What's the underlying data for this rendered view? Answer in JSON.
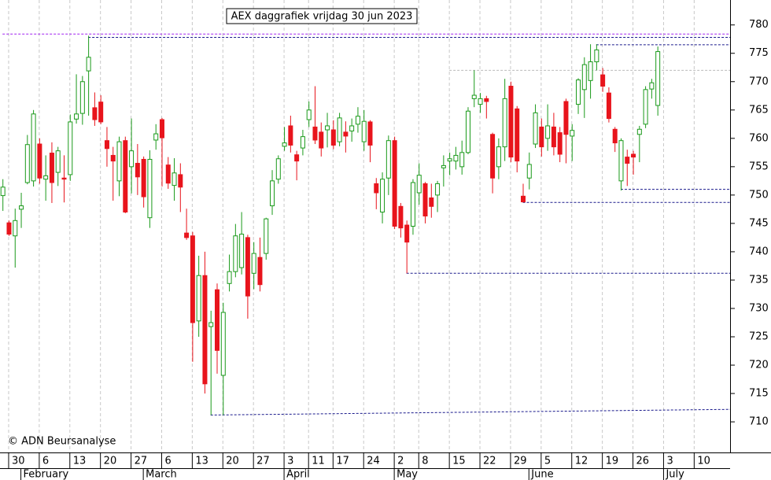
{
  "chart_data": {
    "type": "candlestick",
    "title": "AEX daggrafiek vrijdag 30 jun 2023",
    "source": "© ADN Beursanalyse",
    "x": [
      "2023-01-27",
      "2023-01-30",
      "2023-01-31",
      "2023-02-01",
      "2023-02-02",
      "2023-02-03",
      "2023-02-06",
      "2023-02-07",
      "2023-02-08",
      "2023-02-09",
      "2023-02-10",
      "2023-02-13",
      "2023-02-14",
      "2023-02-15",
      "2023-02-16",
      "2023-02-17",
      "2023-02-20",
      "2023-02-21",
      "2023-02-22",
      "2023-02-23",
      "2023-02-24",
      "2023-02-27",
      "2023-02-28",
      "2023-03-01",
      "2023-03-02",
      "2023-03-03",
      "2023-03-06",
      "2023-03-07",
      "2023-03-08",
      "2023-03-09",
      "2023-03-10",
      "2023-03-13",
      "2023-03-14",
      "2023-03-15",
      "2023-03-16",
      "2023-03-17",
      "2023-03-20",
      "2023-03-21",
      "2023-03-22",
      "2023-03-23",
      "2023-03-24",
      "2023-03-27",
      "2023-03-28",
      "2023-03-29",
      "2023-03-30",
      "2023-03-31",
      "2023-04-03",
      "2023-04-04",
      "2023-04-05",
      "2023-04-06",
      "2023-04-11",
      "2023-04-12",
      "2023-04-13",
      "2023-04-14",
      "2023-04-17",
      "2023-04-18",
      "2023-04-19",
      "2023-04-20",
      "2023-04-21",
      "2023-04-24",
      "2023-04-25",
      "2023-04-26",
      "2023-04-27",
      "2023-04-28",
      "2023-05-02",
      "2023-05-03",
      "2023-05-04",
      "2023-05-05",
      "2023-05-08",
      "2023-05-09",
      "2023-05-10",
      "2023-05-11",
      "2023-05-12",
      "2023-05-15",
      "2023-05-16",
      "2023-05-17",
      "2023-05-18",
      "2023-05-19",
      "2023-05-22",
      "2023-05-23",
      "2023-05-24",
      "2023-05-25",
      "2023-05-26",
      "2023-05-29",
      "2023-05-30",
      "2023-05-31",
      "2023-06-01",
      "2023-06-02",
      "2023-06-05",
      "2023-06-06",
      "2023-06-07",
      "2023-06-08",
      "2023-06-09",
      "2023-06-12",
      "2023-06-13",
      "2023-06-14",
      "2023-06-15",
      "2023-06-16",
      "2023-06-19",
      "2023-06-20",
      "2023-06-21",
      "2023-06-22",
      "2023-06-23",
      "2023-06-26",
      "2023-06-27",
      "2023-06-28",
      "2023-06-29",
      "2023-06-30"
    ],
    "open": [
      749.9,
      745.1,
      742.8,
      747.5,
      752.2,
      752.5,
      759.0,
      752.8,
      757.4,
      754.0,
      753.0,
      753.6,
      763.4,
      764.4,
      771.9,
      765.4,
      766.4,
      759.6,
      757.0,
      752.5,
      759.6,
      755.0,
      755.6,
      756.3,
      746.0,
      759.7,
      763.3,
      755.3,
      751.7,
      753.6,
      743.3,
      742.8,
      727.8,
      735.8,
      726.8,
      733.3,
      718.2,
      734.4,
      736.5,
      737.2,
      742.5,
      736.2,
      739.0,
      739.7,
      748.1,
      752.8,
      758.6,
      762.2,
      757.1,
      758.3,
      763.3,
      762.0,
      761.1,
      761.5,
      761.5,
      759.4,
      761.1,
      761.3,
      762.5,
      759.4,
      762.9,
      752.0,
      747.0,
      753.0,
      759.6,
      748.0,
      744.7,
      744.5,
      750.4,
      752.0,
      749.5,
      750.0,
      754.8,
      756.0,
      756.0,
      755.0,
      757.5,
      767.0,
      766.0,
      767.0,
      760.7,
      755.0,
      758.5,
      769.2,
      765.2,
      749.8,
      753.0,
      759.0,
      762.0,
      760.0,
      762.0,
      761.0,
      766.5,
      760.4,
      766.0,
      768.6,
      770.2,
      773.5,
      771.2,
      768.0,
      761.6,
      752.5,
      756.7,
      757.2,
      760.7,
      762.5,
      768.7,
      765.8
    ],
    "high": [
      752.8,
      745.5,
      747.6,
      750.4,
      760.6,
      765.0,
      760.0,
      757.0,
      759.3,
      758.5,
      757.0,
      764.2,
      771.3,
      771.0,
      778.1,
      768.1,
      767.6,
      762.0,
      758.5,
      760.3,
      760.3,
      763.5,
      759.0,
      756.8,
      757.9,
      762.5,
      763.6,
      756.7,
      756.5,
      755.6,
      747.6,
      743.5,
      739.3,
      740.0,
      729.6,
      734.4,
      731.0,
      739.5,
      744.9,
      747.0,
      743.0,
      741.7,
      742.5,
      746.0,
      754.4,
      757.0,
      762.0,
      764.0,
      757.8,
      761.5,
      766.5,
      769.2,
      762.8,
      764.5,
      763.2,
      764.5,
      763.0,
      763.5,
      765.5,
      765.0,
      763.2,
      753.0,
      754.0,
      760.5,
      760.3,
      748.6,
      745.5,
      752.8,
      755.6,
      752.3,
      752.0,
      752.5,
      757.0,
      757.5,
      758.5,
      759.6,
      765.5,
      772.0,
      768.0,
      767.5,
      761.0,
      760.0,
      770.5,
      770.0,
      765.7,
      752.0,
      757.5,
      766.0,
      763.5,
      766.0,
      764.5,
      762.0,
      767.0,
      762.5,
      770.6,
      774.3,
      776.6,
      776.6,
      772.4,
      769.0,
      762.0,
      760.0,
      758.0,
      757.8,
      762.2,
      769.2,
      770.5,
      776.2
    ],
    "low": [
      747.2,
      742.8,
      737.2,
      744.2,
      751.9,
      751.5,
      752.0,
      749.0,
      748.6,
      751.6,
      748.7,
      752.5,
      762.6,
      762.4,
      764.0,
      762.2,
      762.5,
      755.0,
      749.0,
      749.8,
      746.8,
      750.3,
      750.0,
      747.8,
      744.2,
      758.0,
      751.5,
      751.1,
      749.0,
      747.0,
      742.1,
      720.6,
      725.0,
      715.0,
      711.2,
      718.5,
      711.2,
      733.0,
      735.5,
      736.0,
      728.2,
      733.4,
      733.0,
      738.6,
      746.5,
      752.0,
      757.8,
      757.5,
      752.6,
      757.0,
      762.0,
      759.0,
      756.8,
      758.4,
      758.1,
      758.6,
      757.5,
      759.4,
      761.0,
      757.8,
      755.8,
      747.5,
      745.0,
      750.0,
      744.0,
      742.5,
      736.2,
      743.0,
      748.3,
      745.0,
      746.0,
      747.0,
      751.5,
      753.5,
      754.5,
      753.6,
      757.2,
      765.5,
      764.5,
      763.5,
      750.3,
      752.8,
      756.0,
      755.8,
      754.0,
      748.7,
      751.0,
      758.3,
      756.8,
      757.8,
      757.0,
      755.8,
      755.6,
      756.0,
      764.3,
      763.6,
      767.0,
      772.0,
      768.2,
      762.8,
      757.6,
      750.8,
      751.6,
      753.6,
      755.8,
      761.8,
      767.0,
      764.0
    ],
    "close": [
      751.4,
      743.1,
      745.5,
      748.1,
      758.9,
      764.3,
      753.0,
      753.4,
      752.2,
      757.8,
      752.8,
      762.9,
      764.3,
      770.0,
      774.3,
      763.3,
      762.9,
      758.2,
      756.0,
      759.4,
      747.0,
      757.8,
      753.2,
      749.7,
      756.3,
      760.8,
      760.1,
      752.1,
      753.9,
      751.4,
      742.5,
      727.5,
      735.8,
      716.7,
      727.5,
      722.6,
      729.3,
      736.5,
      742.8,
      743.1,
      732.2,
      739.7,
      734.2,
      745.8,
      752.5,
      756.4,
      759.2,
      758.8,
      756.0,
      760.3,
      765.0,
      759.7,
      758.3,
      762.2,
      758.8,
      763.6,
      760.4,
      762.2,
      763.9,
      763.0,
      758.8,
      750.4,
      752.8,
      759.6,
      744.5,
      744.2,
      741.7,
      752.2,
      753.5,
      746.3,
      748.0,
      752.0,
      755.2,
      756.4,
      757.0,
      757.5,
      764.8,
      767.6,
      767.0,
      766.5,
      753.0,
      758.5,
      767.0,
      756.7,
      756.0,
      748.8,
      755.4,
      764.5,
      758.5,
      762.2,
      758.5,
      757.2,
      760.7,
      761.4,
      770.3,
      773.0,
      773.5,
      775.6,
      769.2,
      763.5,
      759.2,
      759.6,
      755.6,
      756.7,
      761.6,
      768.6,
      769.8,
      775.3
    ],
    "up_color": "#1a9a1a",
    "down_color": "#e8141c",
    "ylim": [
      704.6,
      784.4
    ],
    "yticks": [
      710,
      715,
      720,
      725,
      730,
      735,
      740,
      745,
      750,
      755,
      760,
      765,
      770,
      775,
      780
    ],
    "xticks": [
      {
        "value": "2023-01-30",
        "label": "30"
      },
      {
        "value": "2023-02-06",
        "label": "6"
      },
      {
        "value": "2023-02-13",
        "label": "13"
      },
      {
        "value": "2023-02-20",
        "label": "20"
      },
      {
        "value": "2023-02-27",
        "label": "27"
      },
      {
        "value": "2023-03-06",
        "label": "6"
      },
      {
        "value": "2023-03-13",
        "label": "13"
      },
      {
        "value": "2023-03-20",
        "label": "20"
      },
      {
        "value": "2023-03-27",
        "label": "27"
      },
      {
        "value": "2023-04-03",
        "label": "3"
      },
      {
        "value": "2023-04-11",
        "label": "11"
      },
      {
        "value": "2023-04-17",
        "label": "17"
      },
      {
        "value": "2023-04-24",
        "label": "24"
      },
      {
        "value": "2023-05-02",
        "label": "2"
      },
      {
        "value": "2023-05-08",
        "label": "8"
      },
      {
        "value": "2023-05-15",
        "label": "15"
      },
      {
        "value": "2023-05-22",
        "label": "22"
      },
      {
        "value": "2023-05-29",
        "label": "29"
      },
      {
        "value": "2023-06-05",
        "label": "5"
      },
      {
        "value": "2023-06-12",
        "label": "12"
      },
      {
        "value": "2023-06-19",
        "label": "19"
      },
      {
        "value": "2023-06-26",
        "label": "26"
      },
      {
        "value": "2023-07-03",
        "label": "3"
      },
      {
        "value": "2023-07-10",
        "label": "10"
      }
    ],
    "month_ticks": [
      {
        "value": "2023-02-01",
        "label": "February"
      },
      {
        "value": "2023-03-01",
        "label": "March"
      },
      {
        "value": "2023-04-03",
        "label": "April"
      },
      {
        "value": "2023-05-02",
        "label": "May"
      },
      {
        "value": "2023-06-01",
        "label": "June"
      },
      {
        "value": "2023-07-03",
        "label": "July"
      }
    ],
    "lines": [
      {
        "from": "2023-01-27",
        "values": [
          778.4,
          778.4
        ],
        "color": "#a020f0"
      },
      {
        "from": "2023-02-16",
        "values": [
          777.8,
          777.8
        ],
        "color": "#1a1a8c"
      },
      {
        "from": "2023-06-16",
        "values": [
          776.5,
          776.5
        ],
        "color": "#1a1a8c"
      },
      {
        "from": "2023-05-15",
        "values": [
          772.0,
          772.0
        ],
        "color": "#bbbbbb"
      },
      {
        "from": "2023-06-22",
        "values": [
          751.0,
          751.0
        ],
        "color": "#1a1a8c"
      },
      {
        "from": "2023-05-31",
        "values": [
          748.7,
          748.7
        ],
        "color": "#1a1a8c"
      },
      {
        "from": "2023-05-04",
        "values": [
          736.2,
          736.2
        ],
        "color": "#1a1a8c"
      },
      {
        "from": "2023-03-16",
        "values": [
          711.2,
          712.2
        ],
        "color": "#1a1a8c"
      }
    ]
  }
}
